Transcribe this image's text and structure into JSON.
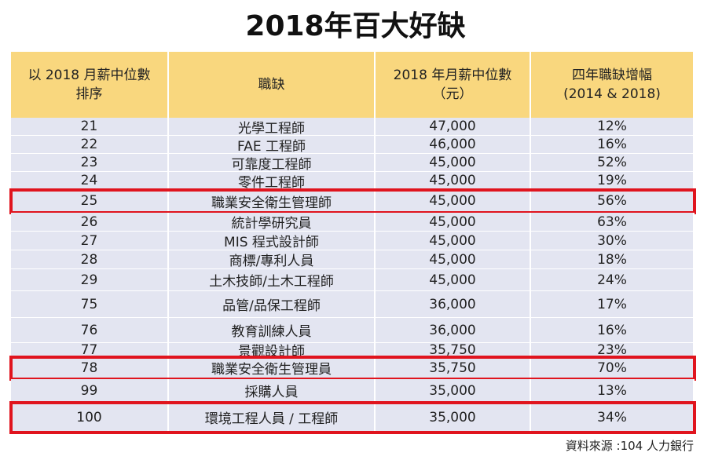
{
  "header": {
    "title": "2018年百大好缺"
  },
  "table": {
    "columns": [
      "以 2018 月薪中位數\n排序",
      "職缺",
      "2018 年月薪中位數\n（元）",
      "四年職缺增幅\n(2014 & 2018)"
    ],
    "rows": [
      {
        "cells": [
          "21",
          "光學工程師",
          "47,000",
          "12%"
        ],
        "highlighted": false
      },
      {
        "cells": [
          "22",
          "FAE 工程師",
          "46,000",
          "16%"
        ],
        "highlighted": false
      },
      {
        "cells": [
          "23",
          "可靠度工程師",
          "45,000",
          "52%"
        ],
        "highlighted": false
      },
      {
        "cells": [
          "24",
          "零件工程師",
          "45,000",
          "19%"
        ],
        "highlighted": false
      },
      {
        "cells": [
          "25",
          "職業安全衛生管理師",
          "45,000",
          "56%"
        ],
        "highlighted": true
      },
      {
        "cells": [
          "26",
          "統計學研究員",
          "45,000",
          "63%"
        ],
        "highlighted": false
      },
      {
        "cells": [
          "27",
          "MIS 程式設計師",
          "45,000",
          "30%"
        ],
        "highlighted": false
      },
      {
        "cells": [
          "28",
          "商標/專利人員",
          "45,000",
          "18%"
        ],
        "highlighted": false
      },
      {
        "cells": [
          "29",
          "土木技師/土木工程師",
          "45,000",
          "24%"
        ],
        "highlighted": false
      },
      {
        "cells": [
          "75",
          "品管/品保工程師",
          "36,000",
          "17%"
        ],
        "highlighted": false
      },
      {
        "cells": [
          "76",
          "教育訓練人員",
          "36,000",
          "16%"
        ],
        "highlighted": false
      },
      {
        "cells": [
          "77",
          "景觀設計師",
          "35,750",
          "23%"
        ],
        "highlighted": false
      },
      {
        "cells": [
          "78",
          "職業安全衛生管理員",
          "35,750",
          "70%"
        ],
        "highlighted": true
      },
      {
        "cells": [
          "99",
          "採購人員",
          "35,000",
          "13%"
        ],
        "highlighted": false
      },
      {
        "cells": [
          "100",
          "環境工程人員 / 工程師",
          "35,000",
          "34%"
        ],
        "highlighted": true
      }
    ]
  },
  "footer": {
    "source": "資料來源 :104 人力銀行"
  }
}
